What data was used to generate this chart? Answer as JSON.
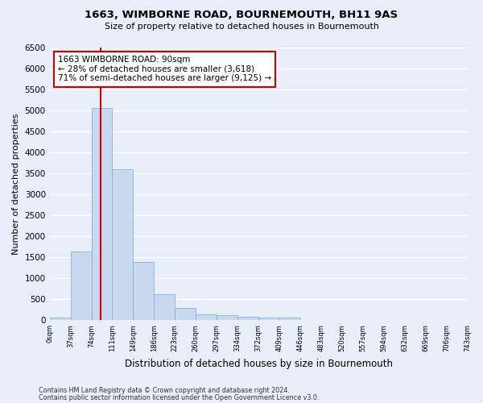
{
  "title": "1663, WIMBORNE ROAD, BOURNEMOUTH, BH11 9AS",
  "subtitle": "Size of property relative to detached houses in Bournemouth",
  "xlabel": "Distribution of detached houses by size in Bournemouth",
  "ylabel": "Number of detached properties",
  "bar_color": "#c8d8ee",
  "bar_edge_color": "#7aaad0",
  "bar_heights": [
    75,
    1650,
    5060,
    3600,
    1400,
    615,
    290,
    145,
    115,
    80,
    60,
    60,
    0,
    0,
    0,
    0,
    0,
    0,
    0,
    0
  ],
  "x_labels": [
    "0sqm",
    "37sqm",
    "74sqm",
    "111sqm",
    "149sqm",
    "186sqm",
    "223sqm",
    "260sqm",
    "297sqm",
    "334sqm",
    "372sqm",
    "409sqm",
    "446sqm",
    "483sqm",
    "520sqm",
    "557sqm",
    "594sqm",
    "632sqm",
    "669sqm",
    "706sqm",
    "743sqm"
  ],
  "ylim": [
    0,
    6500
  ],
  "yticks": [
    0,
    500,
    1000,
    1500,
    2000,
    2500,
    3000,
    3500,
    4000,
    4500,
    5000,
    5500,
    6000,
    6500
  ],
  "annotation_line1": "1663 WIMBORNE ROAD: 90sqm",
  "annotation_line2": "← 28% of detached houses are smaller (3,618)",
  "annotation_line3": "71% of semi-detached houses are larger (9,125) →",
  "vline_x_index": 2.43,
  "annotation_color": "#cc0000",
  "footer1": "Contains HM Land Registry data © Crown copyright and database right 2024.",
  "footer2": "Contains public sector information licensed under the Open Government Licence v3.0.",
  "background_color": "#e8eef8",
  "grid_color": "#ffffff"
}
